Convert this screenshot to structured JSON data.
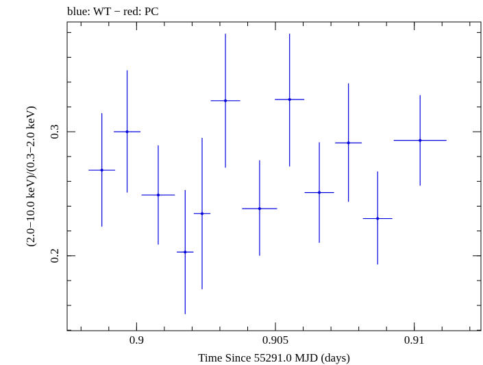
{
  "chart_data": {
    "type": "scatter",
    "title": "blue: WT − red: PC",
    "xlabel": "Time Since 55291.0 MJD (days)",
    "ylabel": "(2.0−10.0 keV)/(0.3−2.0 keV)",
    "xlim": [
      0.8975,
      0.9124
    ],
    "ylim": [
      0.1396,
      0.3885
    ],
    "x_major_ticks": [
      0.9,
      0.905,
      0.91
    ],
    "x_tick_labels": [
      "0.9",
      "0.905",
      "0.91"
    ],
    "x_minor_step": 0.001,
    "y_major_ticks": [
      0.2,
      0.3
    ],
    "y_tick_labels": [
      "0.2",
      "0.3"
    ],
    "y_minor_step": 0.02,
    "grid": false,
    "series": [
      {
        "name": "WT",
        "color": "#0000dd",
        "points": [
          {
            "x": 0.89875,
            "xerr": 0.00048,
            "y": 0.269,
            "yerr_low": 0.0455,
            "yerr_high": 0.046
          },
          {
            "x": 0.89966,
            "xerr": 0.00048,
            "y": 0.3,
            "yerr_low": 0.049,
            "yerr_high": 0.0495
          },
          {
            "x": 0.90078,
            "xerr": 0.0006,
            "y": 0.249,
            "yerr_low": 0.04,
            "yerr_high": 0.04
          },
          {
            "x": 0.90175,
            "xerr": 0.0003,
            "y": 0.203,
            "yerr_low": 0.05,
            "yerr_high": 0.05
          },
          {
            "x": 0.90236,
            "xerr": 0.0003,
            "y": 0.234,
            "yerr_low": 0.061,
            "yerr_high": 0.061
          },
          {
            "x": 0.9032,
            "xerr": 0.00053,
            "y": 0.325,
            "yerr_low": 0.054,
            "yerr_high": 0.054
          },
          {
            "x": 0.90443,
            "xerr": 0.00063,
            "y": 0.238,
            "yerr_low": 0.038,
            "yerr_high": 0.039
          },
          {
            "x": 0.90551,
            "xerr": 0.00053,
            "y": 0.326,
            "yerr_low": 0.054,
            "yerr_high": 0.053
          },
          {
            "x": 0.90658,
            "xerr": 0.00053,
            "y": 0.251,
            "yerr_low": 0.0405,
            "yerr_high": 0.0405
          },
          {
            "x": 0.90763,
            "xerr": 0.00048,
            "y": 0.291,
            "yerr_low": 0.0475,
            "yerr_high": 0.048
          },
          {
            "x": 0.90868,
            "xerr": 0.00053,
            "y": 0.23,
            "yerr_low": 0.037,
            "yerr_high": 0.038
          },
          {
            "x": 0.91021,
            "xerr": 0.00095,
            "y": 0.293,
            "yerr_low": 0.0365,
            "yerr_high": 0.0365
          }
        ]
      }
    ]
  }
}
